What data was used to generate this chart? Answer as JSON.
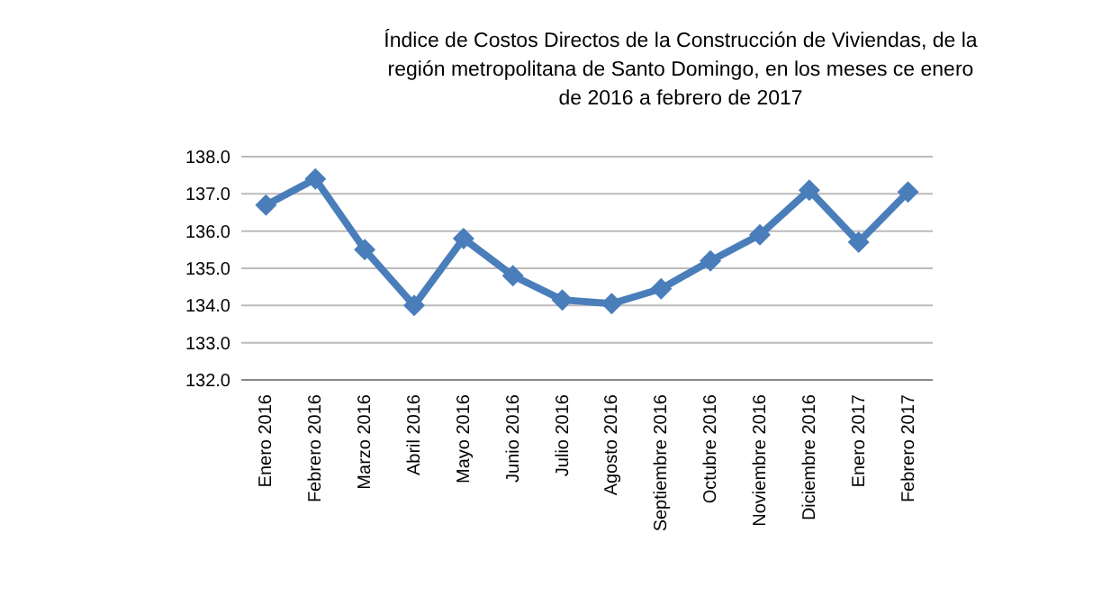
{
  "chart_data": {
    "type": "line",
    "title": "Índice de Costos Directos de la Construcción de Viviendas, de la\nregión metropolitana de Santo Domingo, en los meses ce enero\nde 2016 a febrero de 2017",
    "categories": [
      "Enero 2016",
      "Febrero 2016",
      "Marzo 2016",
      "Abril 2016",
      "Mayo 2016",
      "Junio 2016",
      "Julio 2016",
      "Agosto 2016",
      "Septiembre 2016",
      "Octubre 2016",
      "Noviembre 2016",
      "Diciembre 2016",
      "Enero 2017",
      "Febrero 2017"
    ],
    "series": [
      {
        "color": "#4a7ebb",
        "values": [
          136.7,
          137.4,
          135.5,
          134.0,
          135.8,
          134.8,
          134.15,
          134.05,
          134.45,
          135.2,
          135.9,
          137.1,
          135.7,
          137.05
        ]
      }
    ],
    "ylim": [
      132,
      138
    ],
    "yticks": [
      {
        "value": 132,
        "label": "132.0"
      },
      {
        "value": 133,
        "label": "133.0"
      },
      {
        "value": 134,
        "label": "134.0"
      },
      {
        "value": 135,
        "label": "135.0"
      },
      {
        "value": 136,
        "label": "136.0"
      },
      {
        "value": 137,
        "label": "137.0"
      },
      {
        "value": 138,
        "label": "138.0"
      }
    ],
    "grid": "y",
    "marker": "diamond",
    "line_style": "solid"
  }
}
